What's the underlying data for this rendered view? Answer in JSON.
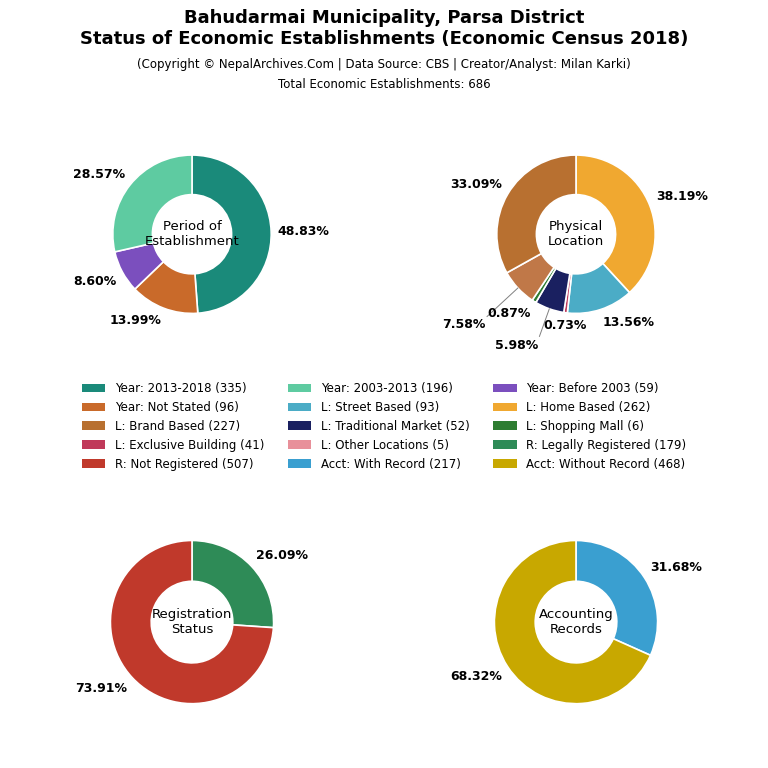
{
  "title": "Bahudarmai Municipality, Parsa District\nStatus of Economic Establishments (Economic Census 2018)",
  "subtitle": [
    "(Copyright © NepalArchives.Com | Data Source: CBS | Creator/Analyst: Milan Karki)",
    "Total Economic Establishments: 686"
  ],
  "legend": "center",
  "series": [
    {
      "name": "Year: 2013-2018 (335)",
      "color": "#1a8a7a"
    },
    {
      "name": "Year: 2003-2013 (196)",
      "color": "#5ecba1"
    },
    {
      "name": "Year: Before 2003 (59)",
      "color": "#7b4fbe"
    },
    {
      "name": "Year: Not Stated (96)",
      "color": "#c96a2a"
    },
    {
      "name": "L: Street Based (93)",
      "color": "#4bacc6"
    },
    {
      "name": "L: Home Based (262)",
      "color": "#f0a830"
    },
    {
      "name": "L: Brand Based (227)",
      "color": "#b87030"
    },
    {
      "name": "L: Traditional Market (52)",
      "color": "#1a2060"
    },
    {
      "name": "L: Shopping Mall (6)",
      "color": "#2e7d32"
    },
    {
      "name": "L: Exclusive Building (41)",
      "color": "#c0395a"
    },
    {
      "name": "L: Other Locations (5)",
      "color": "#e8909a"
    },
    {
      "name": "R: Legally Registered (179)",
      "color": "#2e8b57"
    },
    {
      "name": "R: Not Registered (507)",
      "color": "#c0392b"
    },
    {
      "name": "Acct: With Record (217)",
      "color": "#3a9fd0"
    },
    {
      "name": "Acct: Without Record (468)",
      "color": "#c8a800"
    }
  ],
  "chart_data": [
    {
      "type": "pie",
      "title": "Period of\nEstablishment",
      "values": [
        48.83,
        13.99,
        8.6,
        28.57
      ],
      "colors": [
        "#1a8a7a",
        "#c96a2a",
        "#7b4fbe",
        "#5ecba1"
      ],
      "value_labels": [
        "48.83%",
        "13.99%",
        "8.60%",
        "28.57%"
      ],
      "data_labels": true
    },
    {
      "type": "pie",
      "title": "Physical\nLocation",
      "values": [
        38.19,
        13.56,
        0.73,
        5.98,
        0.87,
        7.58,
        33.09
      ],
      "colors": [
        "#f0a830",
        "#4bacc6",
        "#c0395a",
        "#1a2060",
        "#2e7d32",
        "#c07848",
        "#b87030"
      ],
      "value_labels": [
        "38.19%",
        "13.56%",
        "0.73%",
        "5.98%",
        "0.87%",
        "7.58%",
        "33.09%"
      ],
      "data_labels": true
    },
    {
      "type": "pie",
      "title": "Registration\nStatus",
      "values": [
        26.09,
        73.91
      ],
      "colors": [
        "#2e8b57",
        "#c0392b"
      ],
      "value_labels": [
        "26.09%",
        "73.91%"
      ],
      "data_labels": true
    },
    {
      "type": "pie",
      "title": "Accounting\nRecords",
      "values": [
        31.68,
        68.32
      ],
      "colors": [
        "#3a9fd0",
        "#c8a800"
      ],
      "value_labels": [
        "31.68%",
        "68.32%"
      ],
      "data_labels": true
    }
  ]
}
